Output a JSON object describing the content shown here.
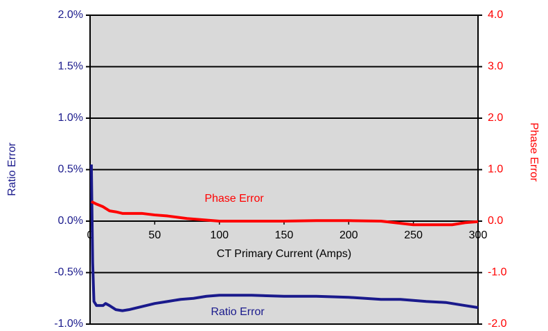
{
  "chart_data": {
    "type": "line",
    "xlabel": "CT Primary Current (Amps)",
    "ylabel": "Ratio Error",
    "y2label": "Phase Error",
    "annotations": [
      "Phase Error",
      "Ratio Error"
    ],
    "xlim": [
      0,
      300
    ],
    "xticks": [
      0,
      50,
      100,
      150,
      200,
      250,
      300
    ],
    "ylim": [
      -1,
      2
    ],
    "yticks": [
      {
        "value": -1,
        "label": "-1.0%"
      },
      {
        "value": -0.5,
        "label": "-0.5%"
      },
      {
        "value": 0,
        "label": "0.0%"
      },
      {
        "value": 0.5,
        "label": "0.5%"
      },
      {
        "value": 1,
        "label": "1.0%"
      },
      {
        "value": 1.5,
        "label": "1.5%"
      },
      {
        "value": 2,
        "label": "2.0%"
      }
    ],
    "y2lim": [
      -2,
      4
    ],
    "y2ticks": [
      {
        "value": -2,
        "label": "-2.0"
      },
      {
        "value": -1,
        "label": "-1.0"
      },
      {
        "value": 0,
        "label": "0.0"
      },
      {
        "value": 1,
        "label": "1.0"
      },
      {
        "value": 2,
        "label": "2.0"
      },
      {
        "value": 3,
        "label": "3.0"
      },
      {
        "value": 4,
        "label": "4.0"
      }
    ],
    "grid": true,
    "series": [
      {
        "name": "Ratio Error",
        "color": "#1a1a8c",
        "axis": "y",
        "x": [
          1,
          2,
          3,
          5,
          10,
          12,
          15,
          20,
          25,
          30,
          40,
          50,
          60,
          70,
          80,
          90,
          100,
          125,
          150,
          175,
          200,
          225,
          240,
          250,
          260,
          275,
          290,
          300
        ],
        "values": [
          0.55,
          -0.4,
          -0.78,
          -0.82,
          -0.82,
          -0.8,
          -0.82,
          -0.86,
          -0.87,
          -0.86,
          -0.83,
          -0.8,
          -0.78,
          -0.76,
          -0.75,
          -0.73,
          -0.72,
          -0.72,
          -0.73,
          -0.73,
          -0.74,
          -0.76,
          -0.76,
          -0.77,
          -0.78,
          -0.79,
          -0.82,
          -0.84
        ]
      },
      {
        "name": "Phase Error",
        "color": "#ff0000",
        "axis": "y2",
        "x": [
          1,
          5,
          10,
          15,
          20,
          25,
          40,
          50,
          60,
          75,
          90,
          100,
          150,
          175,
          200,
          225,
          250,
          280,
          290,
          300
        ],
        "values": [
          0.38,
          0.33,
          0.28,
          0.2,
          0.18,
          0.15,
          0.15,
          0.12,
          0.1,
          0.05,
          0.02,
          0,
          0,
          0.01,
          0.01,
          0,
          -0.07,
          -0.07,
          -0.03,
          -0.01
        ]
      }
    ]
  }
}
